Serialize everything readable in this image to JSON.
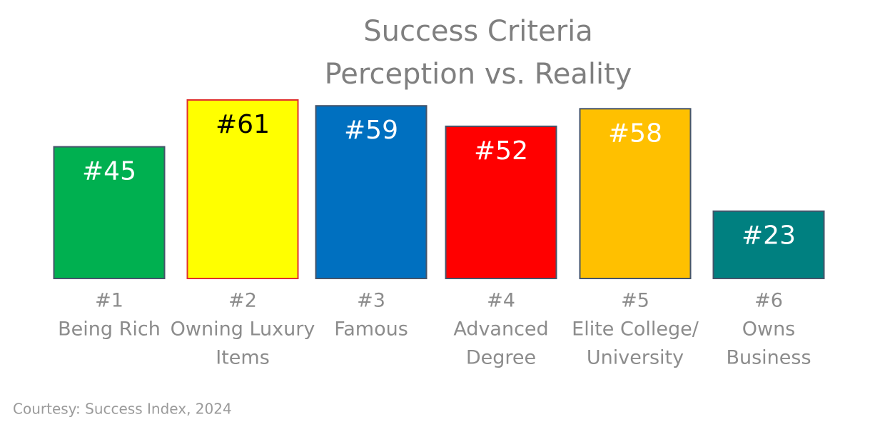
{
  "chart_data": {
    "type": "bar",
    "title": "Success Criteria",
    "subtitle": "Perception vs. Reality",
    "ranks": [
      "#1",
      "#2",
      "#3",
      "#4",
      "#5",
      "#6"
    ],
    "categories": [
      [
        "Being Rich"
      ],
      [
        "Owning Luxury",
        "Items"
      ],
      [
        "Famous"
      ],
      [
        "Advanced",
        "Degree"
      ],
      [
        "Elite College/",
        "University"
      ],
      [
        "Owns",
        "Business"
      ]
    ],
    "values": [
      45,
      61,
      59,
      52,
      58,
      23
    ],
    "value_labels": [
      "#45",
      "#61",
      "#59",
      "#52",
      "#58",
      "#23"
    ],
    "colors": [
      "#00b050",
      "#ffff00",
      "#0070c0",
      "#ff0000",
      "#ffc000",
      "#008080"
    ],
    "source": "Courtesy: Success Index, 2024"
  }
}
